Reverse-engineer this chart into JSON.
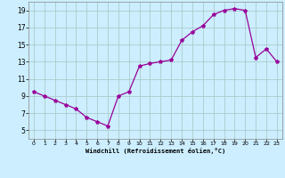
{
  "hours": [
    0,
    1,
    2,
    3,
    4,
    5,
    6,
    7,
    8,
    9,
    10,
    11,
    12,
    13,
    14,
    15,
    16,
    17,
    18,
    19,
    20,
    21,
    22,
    23
  ],
  "values": [
    9.5,
    9.0,
    8.5,
    8.0,
    7.5,
    6.5,
    6.0,
    5.5,
    9.0,
    9.5,
    12.5,
    12.8,
    13.0,
    13.2,
    15.5,
    16.5,
    17.2,
    18.5,
    19.0,
    19.2,
    19.0,
    13.5,
    14.5,
    13.0
  ],
  "line_color": "#990099",
  "marker": "*",
  "marker_size": 3,
  "bg_color": "#cceeff",
  "grid_color": "#aacccc",
  "xlabel": "Windchill (Refroidissement éolien,°C)",
  "xlim": [
    -0.5,
    23.5
  ],
  "ylim": [
    4.0,
    20.0
  ],
  "yticks": [
    5,
    7,
    9,
    11,
    13,
    15,
    17,
    19
  ],
  "xticks": [
    0,
    1,
    2,
    3,
    4,
    5,
    6,
    7,
    8,
    9,
    10,
    11,
    12,
    13,
    14,
    15,
    16,
    17,
    18,
    19,
    20,
    21,
    22,
    23
  ]
}
